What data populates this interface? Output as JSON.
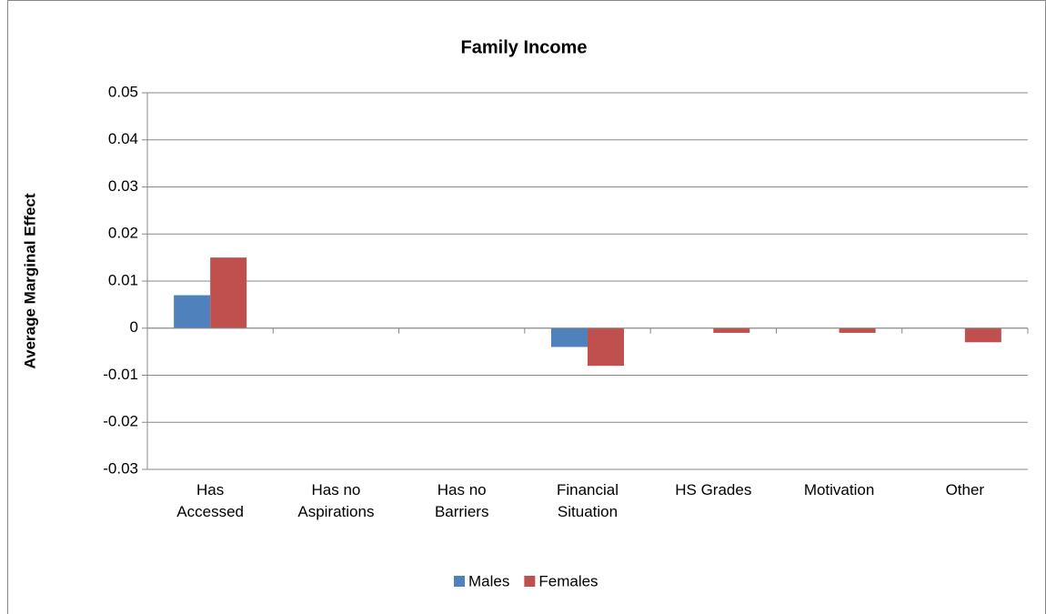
{
  "chart_data": {
    "type": "bar",
    "title": "Family Income",
    "y_label": "Average Marginal Effect",
    "categories": [
      "Has Accessed",
      "Has no Aspirations",
      "Has no Barriers",
      "Financial Situation",
      "HS Grades",
      "Motivation",
      "Other"
    ],
    "series": [
      {
        "name": "Males",
        "color": "#4f81bd",
        "values": [
          0.007,
          0,
          0,
          -0.004,
          0,
          0,
          0
        ]
      },
      {
        "name": "Females",
        "color": "#c0504d",
        "values": [
          0.015,
          0,
          0,
          -0.008,
          -0.001,
          -0.001,
          -0.003
        ]
      }
    ],
    "ylim": [
      -0.03,
      0.05
    ],
    "yticks": [
      -0.03,
      -0.02,
      -0.01,
      0,
      0.01,
      0.02,
      0.03,
      0.04,
      0.05
    ],
    "grid": true,
    "legend": "bottom"
  }
}
